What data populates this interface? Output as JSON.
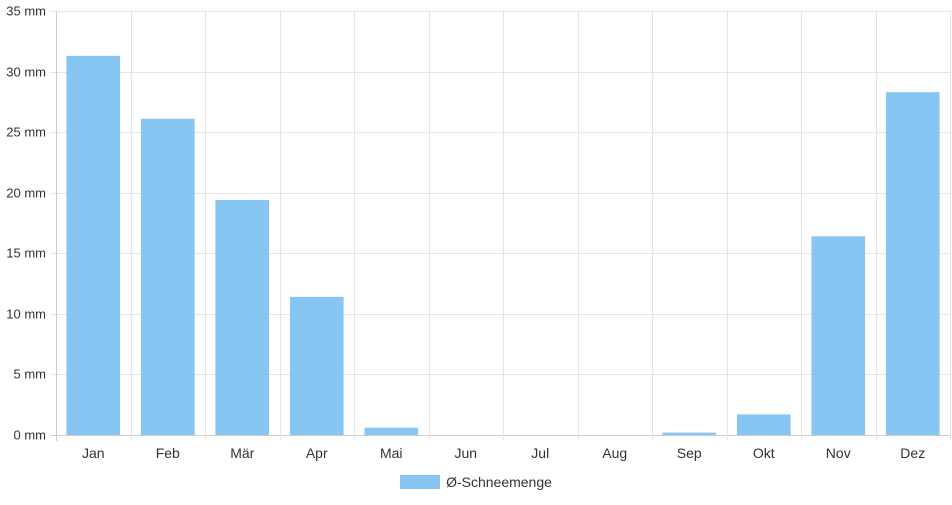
{
  "chart_data": {
    "type": "bar",
    "categories": [
      "Jan",
      "Feb",
      "Mär",
      "Apr",
      "Mai",
      "Jun",
      "Jul",
      "Aug",
      "Sep",
      "Okt",
      "Nov",
      "Dez"
    ],
    "series": [
      {
        "name": "Ø-Schneemenge",
        "values": [
          31.3,
          26.1,
          19.4,
          11.4,
          0.6,
          0,
          0,
          0,
          0.2,
          1.7,
          16.4,
          28.3
        ],
        "color": "#87c5f2"
      }
    ],
    "ylim": [
      0,
      35
    ],
    "yticks": [
      0,
      5,
      10,
      15,
      20,
      25,
      30,
      35
    ],
    "ytick_labels": [
      "0 mm",
      "5 mm",
      "10 mm",
      "15 mm",
      "20 mm",
      "25 mm",
      "30 mm",
      "35 mm"
    ],
    "grid": true,
    "legend": "bottom-center",
    "colors": {
      "grid": "#e5e5e5",
      "axis": "#cccccc",
      "text": "#333333"
    }
  },
  "legend": {
    "label": "Ø-Schneemenge"
  }
}
